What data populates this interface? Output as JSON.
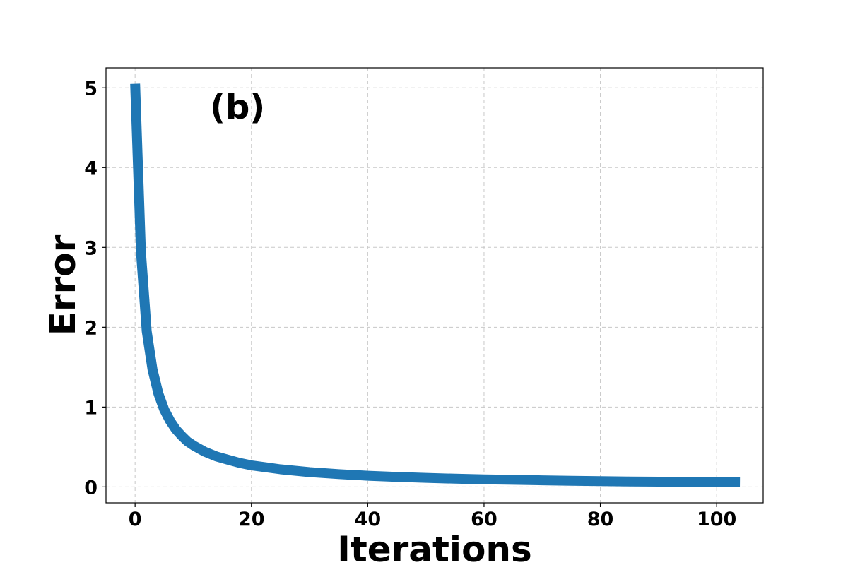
{
  "chart_data": {
    "type": "line",
    "panel_label": "(b)",
    "xlabel": "Iterations",
    "ylabel": "Error",
    "xlim": [
      -5,
      108
    ],
    "ylim": [
      -0.2,
      5.25
    ],
    "xticks": [
      0,
      20,
      40,
      60,
      80,
      100
    ],
    "yticks": [
      0,
      1,
      2,
      3,
      4,
      5
    ],
    "grid": true,
    "series": [
      {
        "color": "#1f77b4",
        "x": [
          0,
          1,
          2,
          3,
          4,
          5,
          6,
          7,
          8,
          9,
          10,
          12,
          14,
          16,
          18,
          20,
          25,
          30,
          35,
          40,
          45,
          50,
          55,
          60,
          65,
          70,
          75,
          80,
          85,
          90,
          95,
          100,
          104
        ],
        "y": [
          5.05,
          2.95,
          1.95,
          1.47,
          1.17,
          0.97,
          0.83,
          0.72,
          0.64,
          0.57,
          0.52,
          0.44,
          0.38,
          0.34,
          0.3,
          0.27,
          0.22,
          0.185,
          0.16,
          0.14,
          0.125,
          0.113,
          0.103,
          0.095,
          0.088,
          0.082,
          0.077,
          0.072,
          0.068,
          0.065,
          0.062,
          0.059,
          0.057
        ]
      }
    ]
  }
}
